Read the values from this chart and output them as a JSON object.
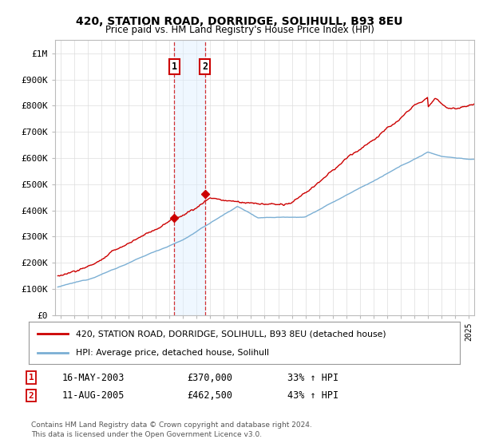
{
  "title": "420, STATION ROAD, DORRIDGE, SOLIHULL, B93 8EU",
  "subtitle": "Price paid vs. HM Land Registry's House Price Index (HPI)",
  "ylabel_values": [
    "£0",
    "£100K",
    "£200K",
    "£300K",
    "£400K",
    "£500K",
    "£600K",
    "£700K",
    "£800K",
    "£900K",
    "£1M"
  ],
  "ylim": [
    0,
    1050000
  ],
  "yticks": [
    0,
    100000,
    200000,
    300000,
    400000,
    500000,
    600000,
    700000,
    800000,
    900000,
    1000000
  ],
  "legend_line1": "420, STATION ROAD, DORRIDGE, SOLIHULL, B93 8EU (detached house)",
  "legend_line2": "HPI: Average price, detached house, Solihull",
  "line1_color": "#cc0000",
  "line2_color": "#7bafd4",
  "transaction1_date": "16-MAY-2003",
  "transaction1_price": 370000,
  "transaction1_label": "33% ↑ HPI",
  "transaction2_date": "11-AUG-2005",
  "transaction2_price": 462500,
  "transaction2_label": "43% ↑ HPI",
  "footnote1": "Contains HM Land Registry data © Crown copyright and database right 2024.",
  "footnote2": "This data is licensed under the Open Government Licence v3.0.",
  "shade_color": "#ddeeff",
  "shade_alpha": 0.45,
  "background_color": "#ffffff",
  "grid_color": "#dddddd",
  "t1_year": 2003.37,
  "t2_year": 2005.61,
  "xlim_left": 1994.6,
  "xlim_right": 2025.4
}
